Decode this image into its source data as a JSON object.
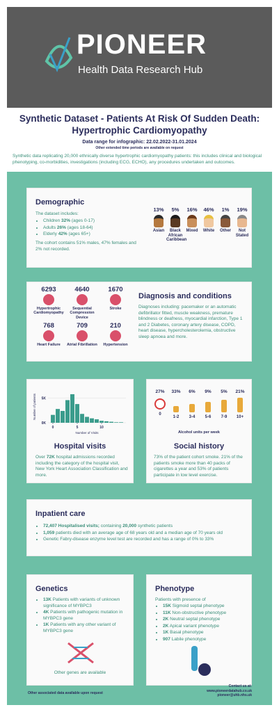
{
  "header": {
    "logo": "PIONEER",
    "subtitle": "Health Data Research Hub"
  },
  "title": "Synthetic Dataset - Patients At Risk Of Sudden Death: Hypertrophic Cardiomyopathy",
  "date_range": "Data range for infographic: 22.02.2022-31.01.2024",
  "date_note": "Other extended time periods are available on request",
  "description": "Synthetic data replicating 20,000 ethnically diverse hypertrophic cardiomyopathy patients: this includes clinical and biological phenotyping, co-morbidities, investigations (including ECG, ECHO), any procedures undertaken and outcomes.",
  "demographic": {
    "heading": "Demographic",
    "intro": "The dataset includes:",
    "ages": [
      {
        "rest": "Children ",
        "bold": "32%",
        "rest2": " (ages 0-17)"
      },
      {
        "rest": "Adults ",
        "bold": "26%",
        "rest2": " (ages 18-64)"
      },
      {
        "rest": "Elderly ",
        "bold": "42%",
        "rest2": " (ages 65+)"
      }
    ],
    "note": "The cohort contains 51% males, 47% females and 2% not recorded.",
    "ethnicity": [
      {
        "pct": "13%",
        "label": "Asian"
      },
      {
        "pct": "5%",
        "label": "Black African Caribbean"
      },
      {
        "pct": "16%",
        "label": "Mixed"
      },
      {
        "pct": "46%",
        "label": "White"
      },
      {
        "pct": "1%",
        "label": "Other"
      },
      {
        "pct": "19%",
        "label": "Not Stated"
      }
    ]
  },
  "diagnosis": {
    "heading": "Diagnosis and conditions",
    "conditions": [
      {
        "count": "6293",
        "label": "Hypertrophic Cardiomyopathy"
      },
      {
        "count": "4640",
        "label": "Sequential Compression Device"
      },
      {
        "count": "1670",
        "label": "Stroke"
      },
      {
        "count": "768",
        "label": "Heart Failure"
      },
      {
        "count": "709",
        "label": "Atrial Fibrillation"
      },
      {
        "count": "210",
        "label": "Hypertension"
      }
    ],
    "text": "Diagnoses including: pacemaker or an automatic defibrillator fitted, muscle weakness, premature blindness or deafness, myocardial infarction, Type 1 and 2 Diabetes, coronary artery disease, COPD, heart disease, hypercholesterolemia, obstructive sleep apnoea and more."
  },
  "chart_data": {
    "type": "bar",
    "ylabel": "Number of patients",
    "xlabel": "Number of Visits",
    "color": "#3a9c8c",
    "x": [
      0,
      1,
      2,
      3,
      4,
      5,
      6,
      7,
      8,
      9,
      10,
      11,
      12,
      13,
      14
    ],
    "values": [
      1600,
      2800,
      2400,
      4600,
      5800,
      3800,
      1800,
      1200,
      900,
      700,
      400,
      300,
      200,
      100,
      100
    ],
    "xlim": [
      -1,
      15
    ],
    "xticks": [
      0,
      5,
      10
    ],
    "ylim": [
      0,
      6500
    ],
    "yticks": [
      {
        "value": 0,
        "label": "0K"
      },
      {
        "value": 5000,
        "label": "5K"
      }
    ]
  },
  "hospital_visits": {
    "heading": "Hospital visits",
    "rest": "Over ",
    "bold": "72K",
    "rest2": " hospital admissions recorded including the category of the hospital visit, New York Heart Association Classification and more."
  },
  "social_history": {
    "heading": "Social history",
    "alcohol": [
      {
        "pct": "27%",
        "label": "0"
      },
      {
        "pct": "33%",
        "label": "1-2"
      },
      {
        "pct": "6%",
        "label": "3-4"
      },
      {
        "pct": "9%",
        "label": "5-6"
      },
      {
        "pct": "5%",
        "label": "7-9"
      },
      {
        "pct": "21%",
        "label": "10+"
      }
    ],
    "axis_label": "Alcohol units per week",
    "text": "73% of the patient cohort smoke. 21% of the patients smoke more than 40 packs of cigarettes a year and 53% of patients participate in low level exercise."
  },
  "inpatient": {
    "heading": "Inpatient care",
    "items": [
      {
        "bold": "72,407 Hospitalised visits;",
        "rest": " containing ",
        "bold2": "20,000",
        "rest2": " synthetic patients"
      },
      {
        "bold": "1,059",
        "rest": " patients died with an average age of 68 years old and a median age of 70 years old"
      },
      {
        "rest": "Genetic Fabry-disease enzyme level test are recorded and has a range of 0% to 33%"
      }
    ]
  },
  "genetics": {
    "heading": "Genetics",
    "items": [
      {
        "bold": "13K",
        "rest": " Patients with variants of unknown significance of MYBPC3"
      },
      {
        "bold": "4K",
        "rest": " Patients with pathogenic mutation in MYBPC3 gene"
      },
      {
        "bold": "1K",
        "rest": " Patients with any other variant of MYBPC3 gene"
      }
    ],
    "note": "Other genes are available"
  },
  "phenotype": {
    "heading": "Phenotype",
    "intro": "Patients with presence of",
    "items": [
      {
        "bold": "15K",
        "rest": " Sigmoid septal phenotype"
      },
      {
        "bold": "11K",
        "rest": " Non-obstructive phenotype"
      },
      {
        "bold": "2K",
        "rest": " Neutral septal phenotype"
      },
      {
        "bold": "2K",
        "rest": " Apical variant phenotype"
      },
      {
        "bold": "1K",
        "rest": " Basal phenotype"
      },
      {
        "bold": "907",
        "rest": " Labile phenotype"
      }
    ]
  },
  "footer": {
    "left": "Other associated data available upon request",
    "contact": "Contact us at:",
    "website": "www.pioneerdatahub.co.uk",
    "email": "pioneer@uhb.nhs.uk"
  }
}
